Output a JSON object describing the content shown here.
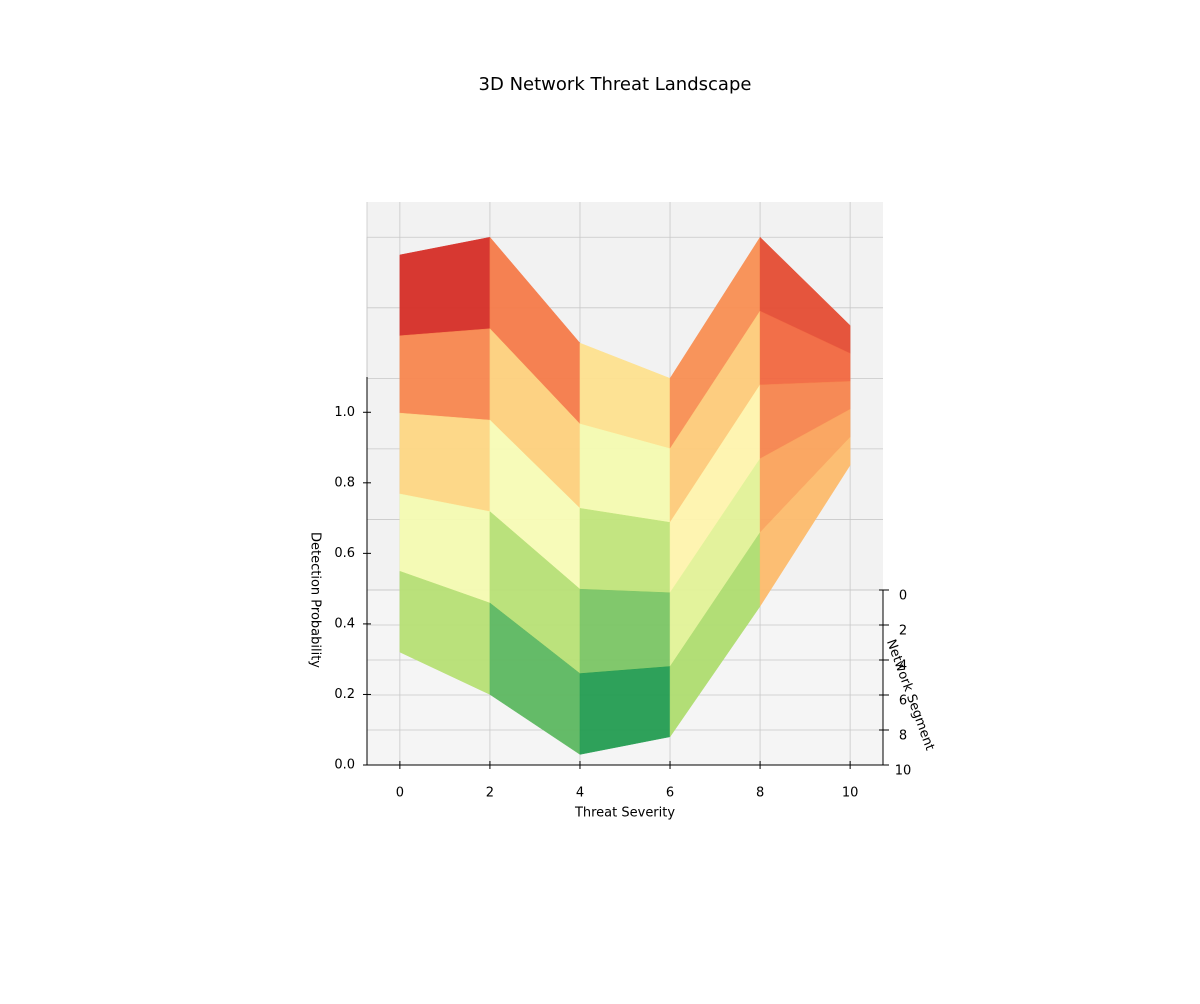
{
  "chart_data": {
    "type": "surface",
    "title": "3D Network Threat Landscape",
    "xlabel": "Threat Severity",
    "ylabel": "Network Segment",
    "zlabel": "Detection Probability",
    "x": [
      0,
      2,
      4,
      6,
      8,
      10
    ],
    "y": [
      0,
      2,
      4,
      6,
      8,
      10
    ],
    "z": [
      [
        0.95,
        1.0,
        0.7,
        0.6,
        1.0,
        0.75
      ],
      [
        0.82,
        0.84,
        0.57,
        0.5,
        0.89,
        0.77
      ],
      [
        0.7,
        0.68,
        0.43,
        0.39,
        0.78,
        0.79
      ],
      [
        0.57,
        0.52,
        0.3,
        0.29,
        0.67,
        0.81
      ],
      [
        0.45,
        0.36,
        0.16,
        0.18,
        0.56,
        0.83
      ],
      [
        0.32,
        0.2,
        0.03,
        0.08,
        0.45,
        0.85
      ]
    ],
    "xlim": [
      -0.73,
      10.73
    ],
    "ylim": [
      0,
      10
    ],
    "zlim": [
      0,
      1.1
    ],
    "xticks": [
      0,
      2,
      4,
      6,
      8,
      10
    ],
    "yticks": [
      0,
      2,
      4,
      6,
      8,
      10
    ],
    "zticks": [
      {
        "value": 0,
        "label": "0.0"
      },
      0.2,
      0.4,
      0.6,
      0.8,
      {
        "value": 1,
        "label": "1.0"
      }
    ],
    "grid": true,
    "colormap": [
      "#006837",
      "#1a9850",
      "#66bd63",
      "#a6d96a",
      "#d9ef8b",
      "#ffffbf",
      "#fee08b",
      "#fdae61",
      "#f46d43",
      "#d73027",
      "#a50026"
    ]
  }
}
